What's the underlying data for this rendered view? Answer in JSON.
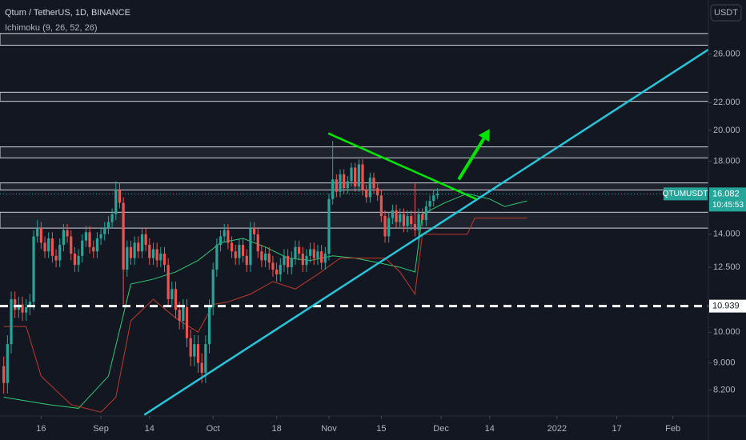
{
  "chart_data": {
    "type": "candlestick",
    "title": "Qtum / TetherUS, 1D, BINANCE",
    "subtitle": "Ichimoku (9, 26, 52, 26)",
    "currency": "USDT",
    "symbol": "QTUMUSDT",
    "countdown": "10:45:53",
    "log_y": true,
    "grid": false,
    "up_color": "#26a69a",
    "down_color": "#ef5350",
    "xlim": [
      -1,
      188.5
    ],
    "ylim": [
      7.5,
      31.3
    ],
    "xticks": [
      {
        "value": 10,
        "label": "16"
      },
      {
        "value": 26,
        "label": "Sep"
      },
      {
        "value": 39,
        "label": "14"
      },
      {
        "value": 56,
        "label": "Oct"
      },
      {
        "value": 73,
        "label": "18"
      },
      {
        "value": 87,
        "label": "Nov"
      },
      {
        "value": 101,
        "label": "15"
      },
      {
        "value": 117,
        "label": "Dec"
      },
      {
        "value": 130,
        "label": "14"
      },
      {
        "value": 148,
        "label": "2022"
      },
      {
        "value": 164,
        "label": "17"
      },
      {
        "value": 179,
        "label": "Feb"
      }
    ],
    "yticks": [
      {
        "value": 26,
        "label": "26.000"
      },
      {
        "value": 22,
        "label": "22.000"
      },
      {
        "value": 20,
        "label": "20.000"
      },
      {
        "value": 18,
        "label": "18.000"
      },
      {
        "value": 14,
        "label": "14.000"
      },
      {
        "value": 12.5,
        "label": "12.500"
      },
      {
        "value": 10,
        "label": "10.000"
      },
      {
        "value": 9,
        "label": "9.000"
      },
      {
        "value": 8.2,
        "label": "8.200"
      }
    ],
    "x": [
      0,
      1,
      2,
      3,
      4,
      5,
      6,
      7,
      8,
      9,
      10,
      11,
      12,
      13,
      14,
      15,
      16,
      17,
      18,
      19,
      20,
      21,
      22,
      23,
      24,
      25,
      26,
      27,
      28,
      29,
      30,
      31,
      32,
      33,
      34,
      35,
      36,
      37,
      38,
      39,
      40,
      41,
      42,
      43,
      44,
      45,
      46,
      47,
      48,
      49,
      50,
      51,
      52,
      53,
      54,
      55,
      56,
      57,
      58,
      59,
      60,
      61,
      62,
      63,
      64,
      65,
      66,
      67,
      68,
      69,
      70,
      71,
      72,
      73,
      74,
      75,
      76,
      77,
      78,
      79,
      80,
      81,
      82,
      83,
      84,
      85,
      86,
      87,
      88,
      89,
      90,
      91,
      92,
      93,
      94,
      95,
      96,
      97,
      98,
      99,
      100,
      101,
      102,
      103,
      104,
      105,
      106,
      107,
      108,
      109,
      110,
      111,
      112,
      113,
      114,
      115,
      116
    ],
    "open": [
      8.9,
      8.4,
      9.6,
      11.2,
      10.8,
      11.0,
      10.7,
      10.9,
      11.1,
      13.9,
      14.3,
      13.6,
      13.2,
      13.8,
      13.0,
      12.8,
      13.5,
      14.2,
      13.9,
      13.1,
      12.6,
      13.0,
      13.7,
      14.1,
      13.4,
      13.2,
      13.8,
      14.0,
      14.3,
      14.6,
      15.0,
      16.3,
      15.6,
      12.4,
      13.4,
      12.9,
      13.6,
      13.2,
      14.0,
      13.5,
      12.9,
      13.3,
      12.8,
      13.1,
      12.6,
      11.2,
      11.6,
      10.8,
      10.4,
      10.9,
      9.8,
      9.2,
      9.6,
      9.0,
      8.7,
      9.6,
      10.9,
      12.4,
      13.5,
      13.9,
      14.2,
      13.6,
      13.2,
      12.9,
      13.5,
      13.0,
      12.6,
      14.3,
      14.0,
      13.2,
      12.8,
      13.1,
      12.7,
      12.4,
      12.2,
      12.6,
      13.0,
      12.5,
      12.9,
      13.4,
      13.1,
      12.6,
      13.0,
      13.3,
      12.9,
      13.2,
      12.7,
      13.1,
      15.8,
      16.9,
      16.2,
      17.2,
      16.4,
      16.8,
      17.6,
      16.5,
      17.8,
      16.3,
      15.9,
      17.0,
      16.4,
      16.0,
      14.9,
      13.9,
      14.8,
      15.2,
      14.6,
      15.0,
      14.4,
      14.9,
      14.5,
      14.2,
      15.0,
      14.7,
      15.4,
      15.7,
      16.0
    ],
    "high": [
      9.2,
      9.9,
      11.5,
      11.5,
      11.3,
      11.3,
      11.2,
      11.4,
      14.2,
      14.7,
      14.6,
      13.9,
      14.1,
      14.1,
      13.3,
      13.8,
      14.5,
      14.5,
      14.2,
      13.4,
      13.3,
      14.0,
      14.4,
      14.4,
      13.7,
      14.1,
      14.3,
      14.6,
      14.9,
      15.3,
      16.8,
      16.7,
      15.9,
      13.7,
      13.7,
      13.9,
      13.9,
      14.3,
      14.3,
      13.8,
      13.6,
      13.6,
      13.4,
      13.4,
      12.9,
      11.9,
      11.9,
      11.1,
      11.2,
      11.2,
      10.1,
      9.9,
      9.9,
      9.3,
      9.9,
      11.2,
      12.7,
      13.8,
      14.2,
      14.5,
      14.5,
      13.9,
      13.5,
      13.8,
      13.8,
      13.3,
      14.6,
      14.6,
      14.3,
      13.5,
      13.4,
      13.4,
      13.0,
      12.7,
      12.9,
      13.3,
      13.3,
      13.2,
      13.7,
      13.7,
      13.4,
      13.3,
      13.6,
      13.6,
      13.5,
      13.5,
      13.4,
      16.1,
      19.3,
      17.2,
      17.5,
      17.5,
      17.1,
      17.9,
      17.9,
      18.1,
      18.1,
      16.6,
      17.3,
      17.3,
      16.7,
      16.3,
      15.2,
      15.1,
      15.5,
      15.5,
      15.3,
      15.3,
      15.2,
      15.2,
      16.7,
      15.3,
      15.3,
      15.7,
      16.0,
      16.3,
      16.4
    ],
    "low": [
      8.1,
      8.1,
      9.3,
      10.5,
      10.5,
      10.4,
      10.4,
      10.6,
      10.8,
      13.6,
      13.3,
      12.9,
      12.9,
      12.7,
      12.5,
      12.5,
      13.2,
      13.6,
      12.8,
      12.3,
      12.3,
      12.7,
      13.4,
      13.1,
      12.9,
      12.9,
      13.5,
      13.7,
      14.0,
      14.3,
      14.7,
      15.3,
      11.0,
      12.1,
      12.6,
      12.6,
      12.9,
      12.9,
      13.2,
      12.6,
      12.6,
      12.5,
      12.5,
      12.3,
      10.9,
      10.9,
      10.5,
      10.1,
      10.1,
      9.5,
      8.9,
      8.9,
      8.7,
      8.4,
      8.4,
      9.3,
      10.6,
      12.1,
      13.2,
      13.6,
      13.3,
      12.9,
      12.6,
      12.6,
      12.7,
      12.3,
      12.3,
      13.7,
      12.9,
      12.5,
      12.5,
      12.4,
      12.1,
      11.9,
      11.9,
      12.3,
      12.2,
      12.2,
      12.6,
      12.8,
      12.3,
      12.3,
      12.7,
      12.6,
      12.6,
      12.4,
      12.4,
      12.8,
      15.5,
      15.9,
      15.9,
      16.1,
      16.1,
      16.5,
      16.2,
      16.2,
      16.0,
      15.6,
      15.6,
      16.1,
      15.7,
      14.6,
      13.6,
      13.6,
      14.5,
      14.3,
      14.3,
      14.1,
      14.1,
      14.2,
      13.9,
      13.6,
      14.4,
      14.4,
      15.1,
      15.4,
      15.8
    ],
    "close": [
      8.4,
      9.6,
      11.2,
      10.8,
      11.0,
      10.7,
      10.9,
      11.1,
      13.9,
      14.3,
      13.6,
      13.2,
      13.8,
      13.0,
      12.8,
      13.5,
      14.2,
      13.9,
      13.1,
      12.6,
      13.0,
      13.7,
      14.1,
      13.4,
      13.2,
      13.8,
      14.0,
      14.3,
      14.6,
      15.0,
      16.3,
      15.6,
      12.4,
      13.4,
      12.9,
      13.6,
      13.2,
      14.0,
      13.5,
      12.9,
      13.3,
      12.8,
      13.1,
      12.6,
      11.2,
      11.6,
      10.8,
      10.4,
      10.9,
      9.8,
      9.2,
      9.6,
      9.0,
      8.7,
      9.6,
      10.9,
      12.4,
      13.5,
      13.9,
      14.2,
      13.6,
      13.2,
      12.9,
      13.5,
      13.0,
      12.6,
      14.3,
      14.0,
      13.2,
      12.8,
      13.1,
      12.7,
      12.4,
      12.2,
      12.6,
      13.0,
      12.5,
      12.9,
      13.4,
      13.1,
      12.6,
      13.0,
      13.3,
      12.9,
      13.2,
      12.7,
      13.1,
      15.8,
      16.9,
      16.2,
      17.2,
      16.4,
      16.8,
      17.6,
      16.5,
      17.8,
      16.3,
      15.9,
      17.0,
      16.4,
      16.0,
      14.9,
      13.9,
      14.8,
      15.2,
      14.6,
      15.0,
      14.4,
      14.9,
      14.5,
      14.2,
      15.0,
      14.7,
      15.4,
      15.7,
      16.0,
      16.082
    ],
    "span_lines": [
      {
        "color": "#2ecc71",
        "x": [
          0,
          12,
          20,
          28,
          34,
          40,
          46,
          52,
          58,
          64,
          70,
          76,
          82,
          88,
          94,
          100,
          106,
          110,
          112,
          118,
          124,
          130,
          134,
          140
        ],
        "values": [
          8.0,
          7.8,
          7.7,
          8.6,
          11.8,
          12.0,
          12.3,
          12.8,
          13.6,
          13.8,
          13.4,
          12.9,
          12.8,
          13.0,
          12.9,
          12.7,
          12.5,
          12.3,
          15.0,
          15.6,
          16.1,
          15.8,
          15.4,
          15.7
        ]
      },
      {
        "color": "#c0392b",
        "x": [
          0,
          6,
          10,
          18,
          26,
          30,
          34,
          40,
          46,
          52,
          56,
          60,
          66,
          72,
          78,
          84,
          90,
          96,
          102,
          106,
          110,
          112,
          118,
          124,
          126,
          140
        ],
        "values": [
          10.2,
          10.2,
          8.6,
          7.8,
          7.6,
          8.0,
          10.4,
          11.2,
          10.5,
          10.0,
          11.0,
          11.1,
          11.4,
          11.9,
          11.6,
          12.2,
          12.9,
          12.9,
          12.9,
          12.3,
          11.4,
          14.0,
          14.0,
          14.0,
          14.8,
          14.8
        ]
      }
    ],
    "zones": [
      [
        26.8,
        27.9
      ],
      [
        22.1,
        22.8
      ],
      [
        18.2,
        18.9
      ],
      [
        16.3,
        16.7
      ],
      [
        14.3,
        15.1
      ]
    ],
    "hline": 10.939,
    "trendlines": [
      {
        "color": "#26c6da",
        "x": [
          37.6,
          188.5
        ],
        "y": [
          7.53,
          26.4
        ]
      },
      {
        "color": "#00e600",
        "x": [
          86.8,
          126.4
        ],
        "y": [
          19.8,
          15.8
        ]
      }
    ],
    "arrow": {
      "color": "#00e600",
      "x": [
        121.7,
        130
      ],
      "y": [
        16.9,
        20.1
      ]
    }
  }
}
